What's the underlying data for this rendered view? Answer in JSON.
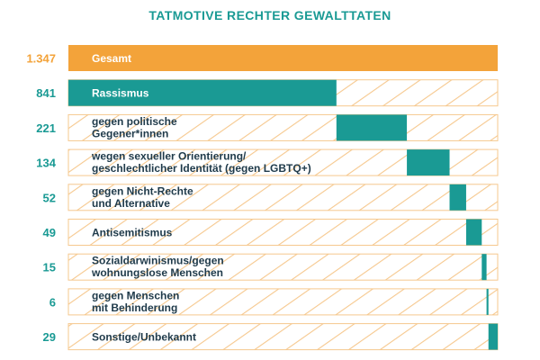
{
  "colors": {
    "teal": "#1a9a94",
    "orange": "#f3a33a",
    "title": "#1a9a94",
    "hatch": "#f6c88e",
    "label_on_dark": "#ffffff",
    "label_on_light": "#1f3a4a"
  },
  "chart_data": {
    "type": "bar",
    "title": "TATMOTIVE RECHTER GEWALTTATEN",
    "orientation": "horizontal",
    "layout_note_style": "stacked-offset (waterfall) bars; total bar spans full width; sub-category bars stack left to right; striped background on remaining space",
    "total": {
      "label": "Gesamt",
      "value": 1347,
      "display": "1.347",
      "color": "#f3a33a"
    },
    "categories": [
      {
        "label_lines": [
          "Rassismus"
        ],
        "value": 841,
        "display": "841"
      },
      {
        "label_lines": [
          "gegen politische",
          "Gegener*innen"
        ],
        "value": 221,
        "display": "221"
      },
      {
        "label_lines": [
          "wegen sexueller Orientierung/",
          "geschlechtlicher Identität (gegen LGBTQ+)"
        ],
        "value": 134,
        "display": "134"
      },
      {
        "label_lines": [
          "gegen Nicht-Rechte",
          "und Alternative"
        ],
        "value": 52,
        "display": "52"
      },
      {
        "label_lines": [
          "Antisemitismus"
        ],
        "value": 49,
        "display": "49"
      },
      {
        "label_lines": [
          "Sozialdarwinismus/gegen",
          "wohnungslose Menschen"
        ],
        "value": 15,
        "display": "15"
      },
      {
        "label_lines": [
          "gegen Menschen",
          "mit Behinderung"
        ],
        "value": 6,
        "display": "6"
      },
      {
        "label_lines": [
          "Sonstige/Unbekannt"
        ],
        "value": 29,
        "display": "29"
      }
    ],
    "xlim": [
      0,
      1347
    ],
    "grid": false,
    "legend": "none"
  }
}
